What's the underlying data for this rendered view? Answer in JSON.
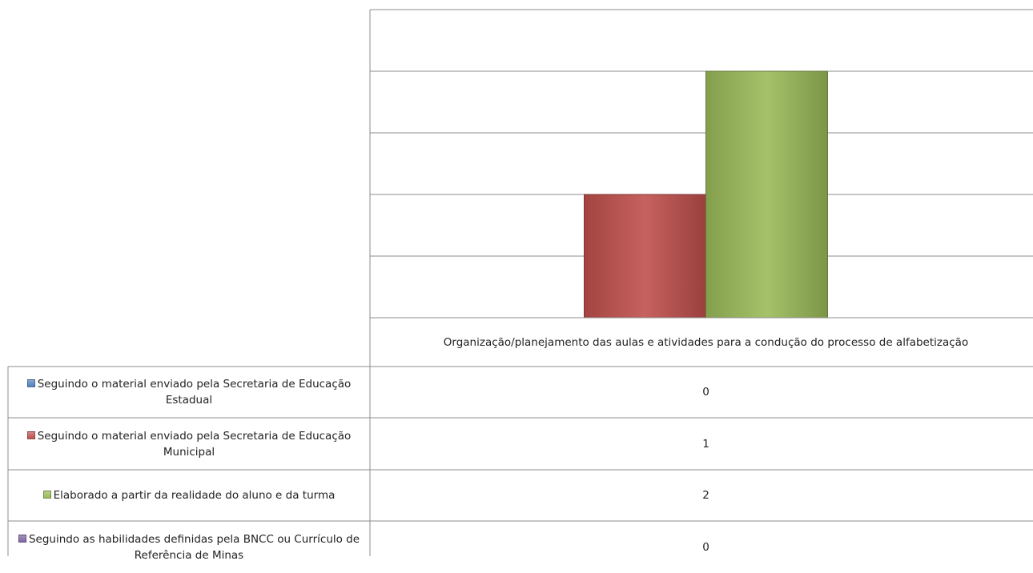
{
  "chart_data": {
    "type": "bar",
    "categories": [
      "Organização/planejamento das aulas e atividades para a condução do processo de alfabetização"
    ],
    "series": [
      {
        "name": "Seguindo o material enviado pela Secretaria de Educação Estadual",
        "color": "#4f81bd",
        "values": [
          0
        ]
      },
      {
        "name": "Seguindo o material enviado pela Secretaria de Educação Municipal",
        "color": "#c0504d",
        "values": [
          1
        ]
      },
      {
        "name": "Elaborado a partir da realidade do aluno e da turma",
        "color": "#9bbb59",
        "values": [
          2
        ]
      },
      {
        "name": "Seguindo as habilidades definidas pela BNCC ou Currículo de Referência de Minas",
        "color": "#8064a2",
        "values": [
          0
        ]
      }
    ],
    "ylim": [
      0,
      2.5
    ],
    "yticks": [
      0,
      0.5,
      1,
      1.5,
      2,
      2.5
    ],
    "grid": true
  }
}
